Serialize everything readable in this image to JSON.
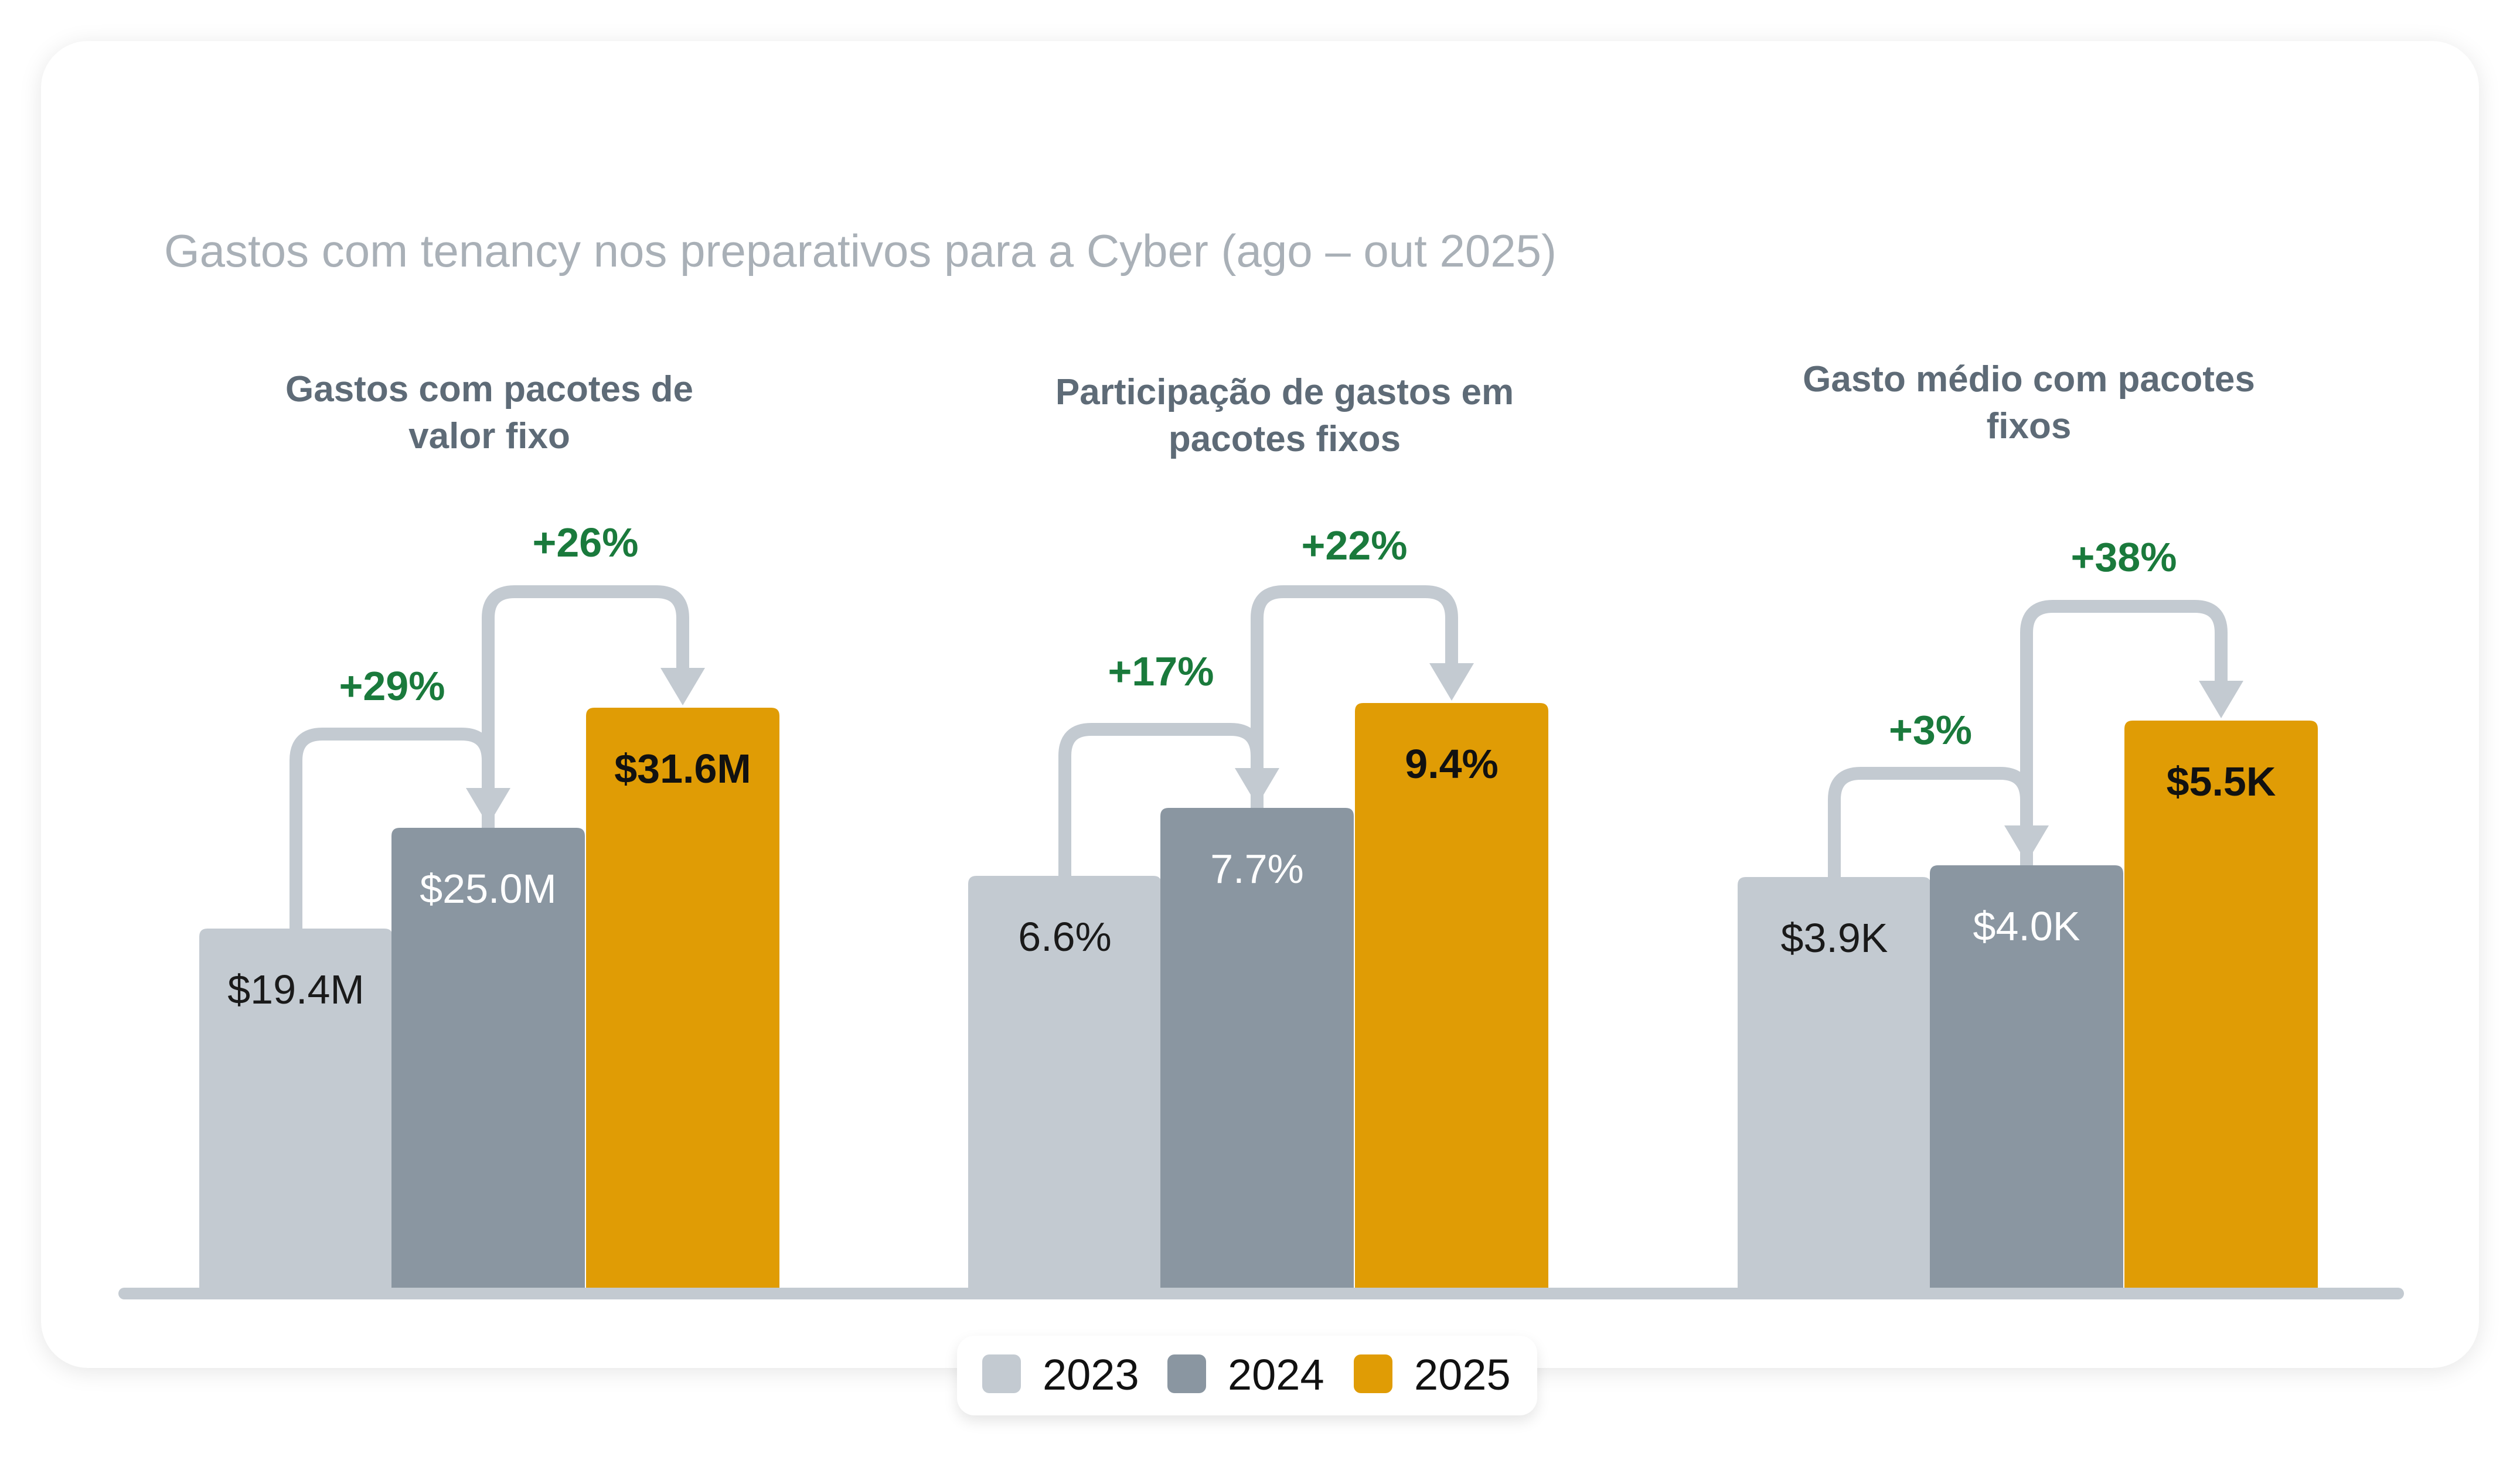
{
  "title": "Gastos com tenancy nos preparativos para a Cyber (ago – out 2025)",
  "colors": {
    "2023": "#c3cad1",
    "2024": "#8a96a1",
    "2025": "#e09c05",
    "arrow": "#c3cad1",
    "growth": "#1a7a3c",
    "panel_title": "#5e6b77",
    "title": "#a9b0b7",
    "baseline": "#c3cad1"
  },
  "legend": [
    {
      "label": "2023",
      "color": "#c3cad1"
    },
    {
      "label": "2024",
      "color": "#8a96a1"
    },
    {
      "label": "2025",
      "color": "#e09c05"
    }
  ],
  "chart_data": [
    {
      "type": "bar",
      "title": "Gastos com pacotes de valor fixo",
      "title_lines": [
        "Gastos com pacotes de",
        "valor fixo"
      ],
      "categories": [
        "2023",
        "2024",
        "2025"
      ],
      "values": [
        19.4,
        25.0,
        31.6
      ],
      "labels": [
        "$19.4M",
        "$25.0M",
        "$31.6M"
      ],
      "growth": [
        {
          "from": "2023",
          "to": "2024",
          "label": "+29%"
        },
        {
          "from": "2024",
          "to": "2025",
          "label": "+26%"
        }
      ]
    },
    {
      "type": "bar",
      "title": "Participação de gastos em pacotes fixos",
      "title_lines": [
        "Participação de gastos em",
        "pacotes fixos"
      ],
      "categories": [
        "2023",
        "2024",
        "2025"
      ],
      "values": [
        6.6,
        7.7,
        9.4
      ],
      "labels": [
        "6.6%",
        "7.7%",
        "9.4%"
      ],
      "growth": [
        {
          "from": "2023",
          "to": "2024",
          "label": "+17%"
        },
        {
          "from": "2024",
          "to": "2025",
          "label": "+22%"
        }
      ]
    },
    {
      "type": "bar",
      "title": "Gasto médio com pacotes fixos",
      "title_lines": [
        "Gasto médio com pacotes",
        "fixos"
      ],
      "categories": [
        "2023",
        "2024",
        "2025"
      ],
      "values": [
        3.9,
        4.0,
        5.5
      ],
      "labels": [
        "$3.9K",
        "$4.0K",
        "$5.5K"
      ],
      "growth": [
        {
          "from": "2023",
          "to": "2024",
          "label": "+3%"
        },
        {
          "from": "2024",
          "to": "2025",
          "label": "+38%"
        }
      ]
    }
  ]
}
